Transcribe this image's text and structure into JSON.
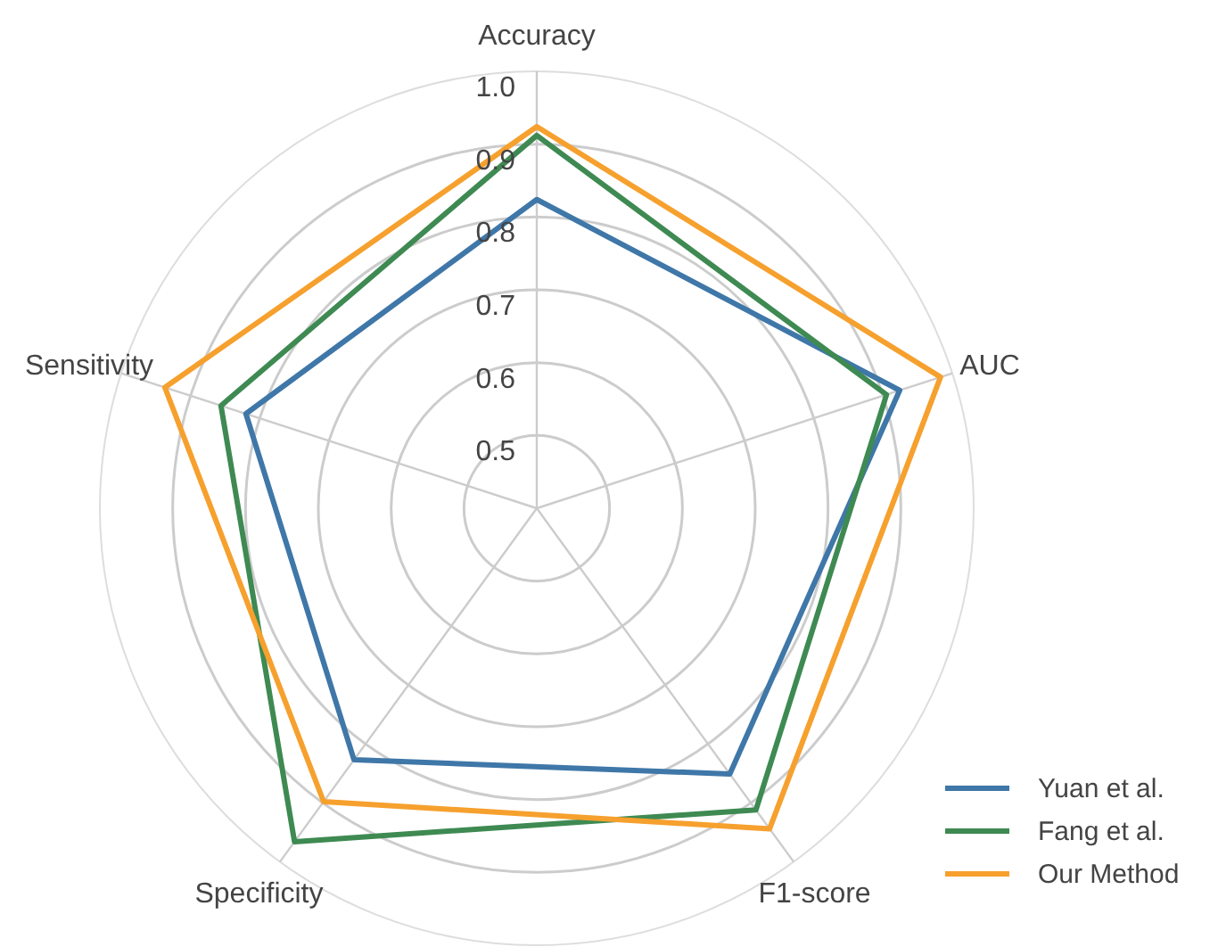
{
  "chart_data": {
    "type": "radar",
    "categories": [
      "Accuracy",
      "AUC",
      "F1-score",
      "Specificity",
      "Sensitivity"
    ],
    "ylim": [
      0.4,
      1.0
    ],
    "yticks": [
      0.5,
      0.6,
      0.7,
      0.8,
      0.9,
      {
        "value": 1.0,
        "label": "1.0"
      }
    ],
    "grid": true,
    "legend": "bottom right",
    "marker": "none",
    "line_style": "solid",
    "series": [
      {
        "name": "Yuan et al.",
        "color": "#3f77a8",
        "values": [
          0.824,
          0.924,
          0.851,
          0.827,
          0.82
        ]
      },
      {
        "name": "Fang et al.",
        "color": "#3e8a52",
        "values": [
          0.912,
          0.905,
          0.912,
          0.966,
          0.856
        ]
      },
      {
        "name": "Our Method",
        "color": "#f6a02e",
        "values": [
          0.924,
          0.983,
          0.944,
          0.898,
          0.937
        ]
      }
    ]
  }
}
